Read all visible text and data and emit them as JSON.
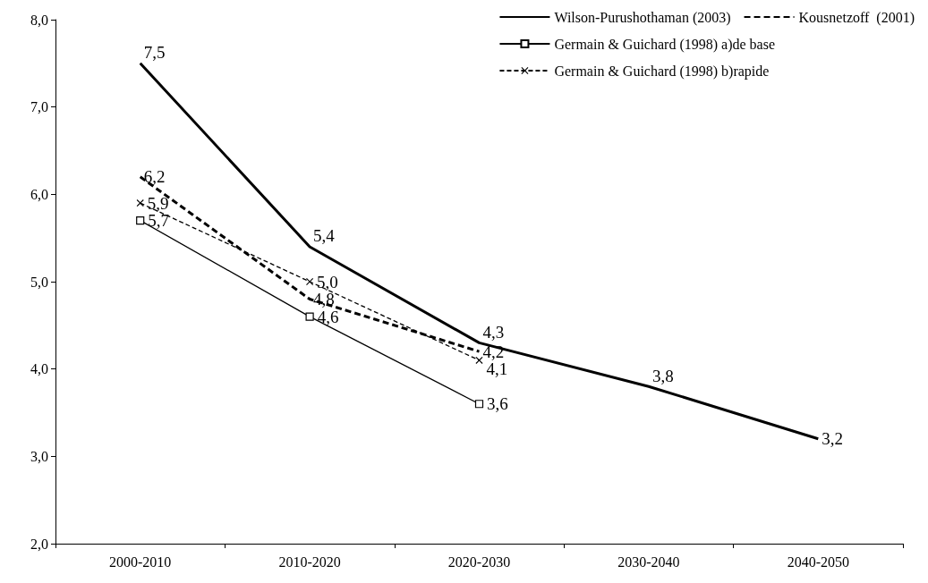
{
  "chart_data": {
    "type": "line",
    "categories": [
      "2000-2010",
      "2010-2020",
      "2020-2030",
      "2030-2040",
      "2040-2050"
    ],
    "ylim": [
      2,
      8
    ],
    "yticks": [
      {
        "value": 2,
        "label": "2,0"
      },
      {
        "value": 3,
        "label": "3,0"
      },
      {
        "value": 4,
        "label": "4,0"
      },
      {
        "value": 5,
        "label": "5,0"
      },
      {
        "value": 6,
        "label": "6,0"
      },
      {
        "value": 7,
        "label": "7,0"
      },
      {
        "value": 8,
        "label": "8,0"
      }
    ],
    "grid": false,
    "legend": "top right",
    "series": [
      {
        "name": "Wilson-Purushothaman (2003)",
        "color": "#000000",
        "marker": "none",
        "line_style": "solid",
        "values": [
          7.5,
          5.4,
          4.3,
          3.8,
          3.2
        ],
        "value_labels": [
          "7,5",
          "5,4",
          "4,3",
          "3,8",
          "3,2"
        ]
      },
      {
        "name": "Kousnetzoff  (2001)",
        "color": "#000000",
        "marker": "none",
        "line_style": "dashed",
        "values": [
          6.2,
          4.8,
          4.2,
          null,
          null
        ],
        "value_labels": [
          "6,2",
          "4,8",
          "4,2",
          null,
          null
        ]
      },
      {
        "name": "Germain & Guichard (1998) a)de base",
        "color": "#000000",
        "marker": "square",
        "line_style": "solid",
        "values": [
          5.7,
          4.6,
          3.6,
          null,
          null
        ],
        "value_labels": [
          "5,7",
          "4,6",
          "3,6",
          null,
          null
        ]
      },
      {
        "name": "Germain & Guichard (1998) b)rapide",
        "color": "#000000",
        "marker": "cross",
        "line_style": "dashed",
        "values": [
          5.9,
          5.0,
          4.1,
          null,
          null
        ],
        "value_labels": [
          "5,9",
          "5,0",
          "4,1",
          null,
          null
        ]
      }
    ]
  }
}
